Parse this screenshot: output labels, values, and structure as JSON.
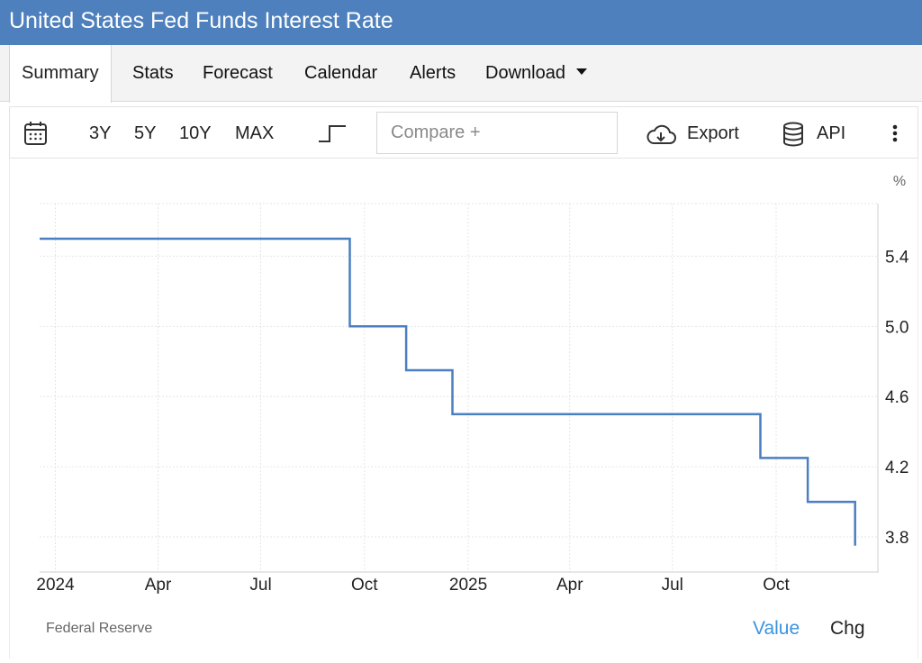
{
  "header": {
    "title": "United States Fed Funds Interest Rate"
  },
  "tabs": {
    "summary": "Summary",
    "stats": "Stats",
    "forecast": "Forecast",
    "calendar": "Calendar",
    "alerts": "Alerts",
    "download": "Download"
  },
  "toolbar": {
    "range_3y": "3Y",
    "range_5y": "5Y",
    "range_10y": "10Y",
    "range_max": "MAX",
    "compare_placeholder": "Compare +",
    "export_label": "Export",
    "api_label": "API"
  },
  "footer": {
    "source": "Federal Reserve",
    "value_label": "Value",
    "chg_label": "Chg"
  },
  "colors": {
    "header_bg": "#4e80bd",
    "line": "#4a7fc1",
    "active_toggle": "#3b93e0"
  },
  "chart_data": {
    "type": "line",
    "step": true,
    "title": "",
    "xlabel": "",
    "ylabel": "",
    "unit_label": "%",
    "x_ticks": [
      "2024",
      "Apr",
      "Jul",
      "Oct",
      "2025",
      "Apr",
      "Jul",
      "Oct"
    ],
    "x_tick_dates": [
      "2024-01-01",
      "2024-04-01",
      "2024-07-01",
      "2024-10-01",
      "2025-01-01",
      "2025-04-01",
      "2025-07-01",
      "2025-10-01"
    ],
    "y_ticks": [
      "3.8",
      "4.2",
      "4.6",
      "5.0",
      "5.4"
    ],
    "xlim": [
      "2023-12-18",
      "2025-12-31"
    ],
    "ylim": [
      3.6,
      5.7
    ],
    "grid": true,
    "series": [
      {
        "name": "",
        "points": [
          {
            "x": "2023-12-18",
            "y": 5.5
          },
          {
            "x": "2024-09-18",
            "y": 5.0
          },
          {
            "x": "2024-11-07",
            "y": 4.75
          },
          {
            "x": "2024-12-18",
            "y": 4.5
          },
          {
            "x": "2025-09-17",
            "y": 4.25
          },
          {
            "x": "2025-10-29",
            "y": 4.0
          },
          {
            "x": "2025-12-10",
            "y": 3.75
          }
        ]
      }
    ]
  }
}
